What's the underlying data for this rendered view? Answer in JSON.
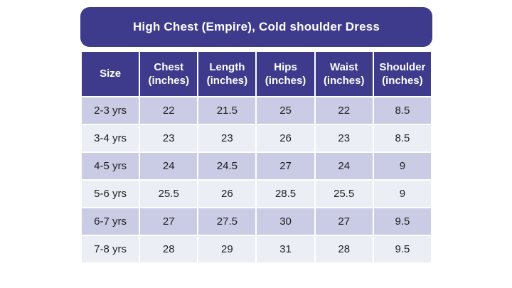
{
  "title": "High Chest (Empire), Cold shoulder Dress",
  "colors": {
    "banner_bg": "#3E3B8D",
    "header_bg": "#3E3B8D",
    "row_alt_bg": "#C9CCE4",
    "row_light_bg": "#ECEEF6",
    "banner_text": "#FFFFFF",
    "cell_text": "#1F1F1F",
    "cell_border": "#FFFFFF",
    "page_bg": "#FFFFFF"
  },
  "table": {
    "columns": [
      {
        "label": "Size",
        "unit": ""
      },
      {
        "label": "Chest",
        "unit": "(inches)"
      },
      {
        "label": "Length",
        "unit": "(inches)"
      },
      {
        "label": "Hips",
        "unit": "(inches)"
      },
      {
        "label": "Waist",
        "unit": "(inches)"
      },
      {
        "label": "Shoulder",
        "unit": "(inches)"
      }
    ],
    "rows": [
      {
        "cells": [
          "2-3 yrs",
          "22",
          "21.5",
          "25",
          "22",
          "8.5"
        ]
      },
      {
        "cells": [
          "3-4 yrs",
          "23",
          "23",
          "26",
          "23",
          "8.5"
        ]
      },
      {
        "cells": [
          "4-5 yrs",
          "24",
          "24.5",
          "27",
          "24",
          "9"
        ]
      },
      {
        "cells": [
          "5-6 yrs",
          "25.5",
          "26",
          "28.5",
          "25.5",
          "9"
        ]
      },
      {
        "cells": [
          "6-7 yrs",
          "27",
          "27.5",
          "30",
          "27",
          "9.5"
        ]
      },
      {
        "cells": [
          "7-8 yrs",
          "28",
          "29",
          "31",
          "28",
          "9.5"
        ]
      }
    ]
  }
}
